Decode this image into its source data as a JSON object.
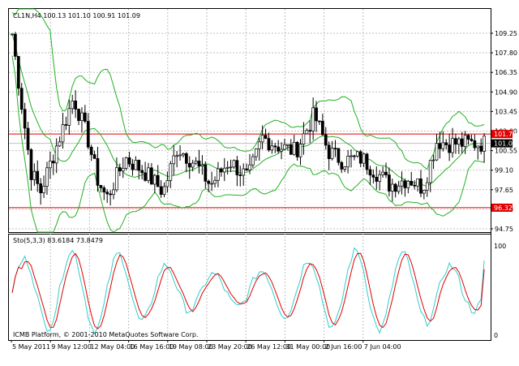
{
  "header": {
    "symbol_info": "CL1N,H4 100.13 101.10 100.91 101.09"
  },
  "indicator": {
    "label": "Sto(5,3,3) 83.6184 73.8479",
    "scale_top": "100",
    "scale_bottom": "0"
  },
  "footer": {
    "copyright": "ICMB Platform, © 2001-2010 MetaQuotes Software Corp."
  },
  "colors": {
    "background": "#ffffff",
    "grid": "#c0c0c0",
    "candle": "#000000",
    "bollinger": "#22b022",
    "support_resistance": "#e00000",
    "current_price_line": "#c0c0c0",
    "stoch_main": "#33cccc",
    "stoch_signal": "#e00000"
  },
  "chart_data": {
    "type": "candlestick",
    "symbol": "CL1N",
    "timeframe": "H4",
    "y_ticks": [
      "109.25",
      "107.80",
      "106.35",
      "104.90",
      "103.45",
      "102.00",
      "100.55",
      "99.10",
      "97.65",
      "96.20",
      "94.75"
    ],
    "x_ticks": [
      "5 May 2011",
      "9 May 12:00",
      "12 May 04:00",
      "16 May 16:00",
      "19 May 08:00",
      "23 May 20:00",
      "26 May 12:00",
      "31 May 00:00",
      "2 Jun 16:00",
      "7 Jun 04:00"
    ],
    "horizontal_levels": [
      {
        "label": "101.78",
        "value": 101.78
      },
      {
        "label": "96.32",
        "value": 96.32
      }
    ],
    "current_price": {
      "label": "101.09",
      "value": 101.09
    },
    "stochastic": {
      "name": "Sto(5,3,3)",
      "main_value": 83.6184,
      "signal_value": 73.8479,
      "range": [
        0,
        100
      ]
    }
  }
}
